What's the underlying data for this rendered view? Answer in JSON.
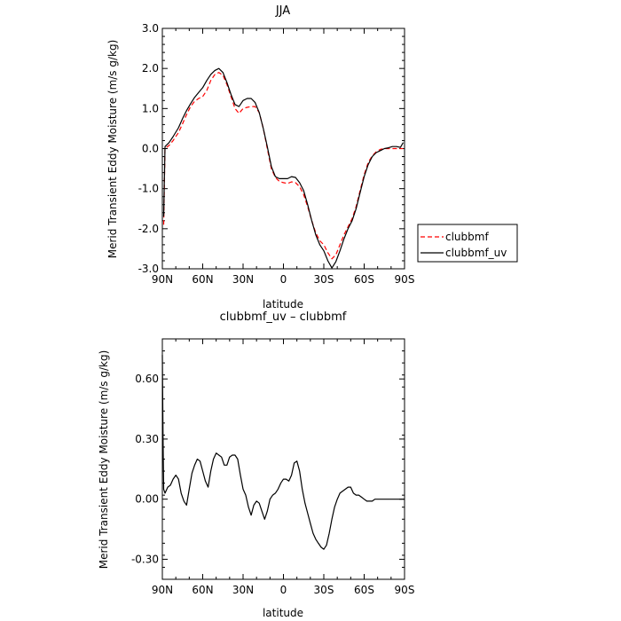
{
  "chart_data": [
    {
      "type": "line",
      "title": "JJA",
      "xlabel": "latitude",
      "ylabel": "Merid Transient Eddy Moisture (m/s g/kg)",
      "xlim": [
        90,
        -90
      ],
      "ylim": [
        -3.0,
        3.0
      ],
      "xticks": [
        90,
        60,
        30,
        0,
        -30,
        -60,
        -90
      ],
      "xticklabels": [
        "90N",
        "60N",
        "30N",
        "0",
        "30S",
        "60S",
        "90S"
      ],
      "yticks": [
        -3.0,
        -2.0,
        -1.0,
        0.0,
        1.0,
        2.0,
        3.0
      ],
      "yticklabels": [
        "-3.0",
        "-2.0",
        "-1.0",
        "0.0",
        "1.0",
        "2.0",
        "3.0"
      ],
      "grid": false,
      "legend": "outside-right",
      "series": [
        {
          "name": "clubbmf",
          "color": "#ff0000",
          "dash": "dashed",
          "x": [
            89,
            88,
            85,
            82,
            78,
            75,
            72,
            69,
            66,
            63,
            60,
            57,
            54,
            51,
            48,
            45,
            42,
            39,
            36,
            33,
            30,
            27,
            24,
            21,
            18,
            15,
            12,
            9,
            6,
            3,
            0,
            -3,
            -6,
            -9,
            -12,
            -15,
            -18,
            -21,
            -24,
            -27,
            -30,
            -33,
            -36,
            -39,
            -42,
            -45,
            -48,
            -51,
            -54,
            -57,
            -60,
            -63,
            -66,
            -69,
            -72,
            -75,
            -78,
            -81,
            -84,
            -87,
            -89
          ],
          "y": [
            -1.9,
            0.0,
            0.08,
            0.2,
            0.4,
            0.62,
            0.85,
            1.05,
            1.18,
            1.25,
            1.3,
            1.45,
            1.7,
            1.85,
            1.9,
            1.83,
            1.6,
            1.3,
            1.0,
            0.88,
            1.0,
            1.03,
            1.05,
            1.05,
            0.9,
            0.5,
            0.0,
            -0.5,
            -0.72,
            -0.82,
            -0.85,
            -0.87,
            -0.83,
            -0.85,
            -0.95,
            -1.15,
            -1.45,
            -1.8,
            -2.1,
            -2.3,
            -2.4,
            -2.6,
            -2.75,
            -2.65,
            -2.4,
            -2.15,
            -1.95,
            -1.75,
            -1.45,
            -1.05,
            -0.65,
            -0.35,
            -0.18,
            -0.08,
            -0.02,
            0.0,
            0.0,
            0.0,
            0.0,
            0.0,
            0.0
          ]
        },
        {
          "name": "clubbmf_uv",
          "color": "#000000",
          "dash": "solid",
          "x": [
            89,
            88,
            85,
            82,
            78,
            75,
            72,
            69,
            66,
            63,
            60,
            57,
            54,
            51,
            48,
            45,
            42,
            39,
            36,
            33,
            30,
            27,
            24,
            21,
            18,
            15,
            12,
            9,
            6,
            3,
            0,
            -3,
            -6,
            -9,
            -12,
            -15,
            -18,
            -21,
            -24,
            -27,
            -30,
            -33,
            -36,
            -39,
            -42,
            -45,
            -48,
            -51,
            -54,
            -57,
            -60,
            -63,
            -66,
            -69,
            -72,
            -75,
            -78,
            -81,
            -84,
            -87,
            -89
          ],
          "y": [
            -1.7,
            0.05,
            0.15,
            0.3,
            0.52,
            0.75,
            0.95,
            1.12,
            1.28,
            1.4,
            1.52,
            1.7,
            1.85,
            1.95,
            2.0,
            1.9,
            1.65,
            1.35,
            1.1,
            1.05,
            1.2,
            1.25,
            1.25,
            1.15,
            0.9,
            0.5,
            0.05,
            -0.45,
            -0.7,
            -0.75,
            -0.75,
            -0.75,
            -0.7,
            -0.72,
            -0.85,
            -1.05,
            -1.4,
            -1.8,
            -2.15,
            -2.4,
            -2.55,
            -2.8,
            -2.98,
            -2.82,
            -2.55,
            -2.25,
            -2.0,
            -1.8,
            -1.5,
            -1.1,
            -0.7,
            -0.4,
            -0.2,
            -0.1,
            -0.05,
            0.0,
            0.02,
            0.05,
            0.05,
            0.03,
            0.15
          ]
        }
      ]
    },
    {
      "type": "line",
      "title": "clubbmf_uv – clubbmf",
      "xlabel": "latitude",
      "ylabel": "Merid Transient Eddy Moisture (m/s g/kg)",
      "xlim": [
        90,
        -90
      ],
      "ylim": [
        -0.4,
        0.8
      ],
      "xticks": [
        90,
        60,
        30,
        0,
        -30,
        -60,
        -90
      ],
      "xticklabels": [
        "90N",
        "60N",
        "30N",
        "0",
        "30S",
        "60S",
        "90S"
      ],
      "yticks": [
        -0.3,
        0.0,
        0.3,
        0.6
      ],
      "yticklabels": [
        "-0.30",
        "0.00",
        "0.30",
        "0.60"
      ],
      "grid": false,
      "series": [
        {
          "color": "#000000",
          "dash": "solid",
          "x": [
            90,
            89.5,
            89,
            88,
            86,
            84,
            82,
            80,
            78,
            76,
            74,
            72,
            70,
            68,
            66,
            64,
            62,
            60,
            58,
            56,
            54,
            52,
            50,
            48,
            46,
            44,
            42,
            40,
            38,
            36,
            34,
            32,
            30,
            28,
            26,
            24,
            22,
            20,
            18,
            16,
            14,
            12,
            10,
            8,
            6,
            4,
            2,
            0,
            -2,
            -4,
            -6,
            -8,
            -10,
            -12,
            -14,
            -16,
            -18,
            -20,
            -22,
            -24,
            -26,
            -28,
            -30,
            -32,
            -34,
            -36,
            -38,
            -40,
            -42,
            -44,
            -46,
            -48,
            -50,
            -52,
            -54,
            -56,
            -58,
            -60,
            -62,
            -64,
            -66,
            -68,
            -70,
            -72,
            -74,
            -76,
            -78,
            -80,
            -82,
            -84,
            -86,
            -88,
            -90
          ],
          "y": [
            0.72,
            0.3,
            0.05,
            0.03,
            0.06,
            0.07,
            0.1,
            0.12,
            0.1,
            0.03,
            -0.01,
            -0.03,
            0.05,
            0.13,
            0.17,
            0.2,
            0.19,
            0.14,
            0.09,
            0.06,
            0.14,
            0.2,
            0.23,
            0.22,
            0.21,
            0.17,
            0.17,
            0.21,
            0.22,
            0.22,
            0.2,
            0.12,
            0.05,
            0.02,
            -0.04,
            -0.08,
            -0.03,
            -0.01,
            -0.02,
            -0.06,
            -0.1,
            -0.06,
            0.0,
            0.02,
            0.03,
            0.05,
            0.08,
            0.1,
            0.1,
            0.09,
            0.12,
            0.18,
            0.19,
            0.14,
            0.05,
            -0.02,
            -0.07,
            -0.12,
            -0.17,
            -0.2,
            -0.22,
            -0.24,
            -0.25,
            -0.23,
            -0.17,
            -0.1,
            -0.04,
            0.0,
            0.03,
            0.04,
            0.05,
            0.06,
            0.06,
            0.03,
            0.02,
            0.02,
            0.01,
            0.0,
            -0.01,
            -0.01,
            -0.01,
            0.0,
            0.0,
            0.0,
            0.0,
            0.0,
            0.0,
            0.0,
            0.0,
            0.0,
            0.0,
            0.0,
            0.0
          ]
        }
      ]
    }
  ]
}
